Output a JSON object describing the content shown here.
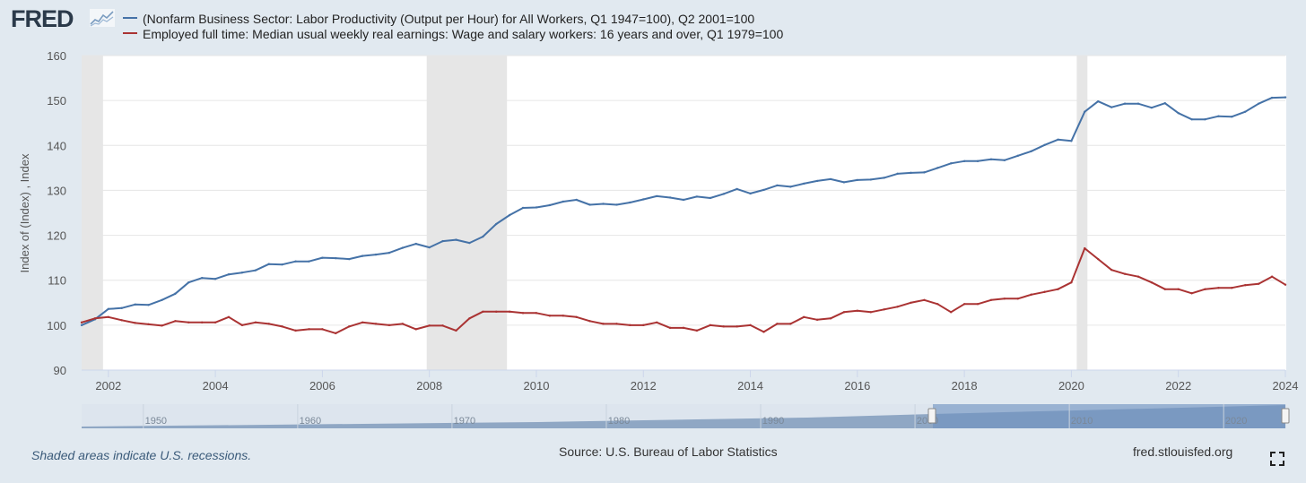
{
  "header": {
    "logo_text": "FRED",
    "logo_icon": "line-chart-icon"
  },
  "legend": [
    {
      "label": "(Nonfarm Business Sector: Labor Productivity (Output per Hour) for All Workers, Q1 1947=100), Q2 2001=100",
      "color": "#4572a7"
    },
    {
      "label": "Employed full time: Median usual weekly real earnings: Wage and salary workers: 16 years and over, Q1 1979=100",
      "color": "#aa3333"
    }
  ],
  "footer": {
    "recession_note": "Shaded areas indicate U.S. recessions.",
    "source": "Source: U.S. Bureau of Labor Statistics",
    "site": "fred.stlouisfed.org"
  },
  "navigator": {
    "ticks": [
      "1950",
      "1960",
      "1970",
      "1980",
      "1990",
      "2000",
      "2010",
      "2020"
    ]
  },
  "chart_data": {
    "type": "line",
    "ylabel": "Index of (Index) , Index",
    "xlabel": "",
    "ylim": [
      90,
      160
    ],
    "xlim": [
      2001.5,
      2024.0
    ],
    "yticks": [
      90,
      100,
      110,
      120,
      130,
      140,
      150,
      160
    ],
    "xticks": [
      "2002",
      "2004",
      "2006",
      "2008",
      "2010",
      "2012",
      "2014",
      "2016",
      "2018",
      "2020",
      "2022",
      "2024"
    ],
    "grid": true,
    "recessions": [
      [
        2001.2,
        2001.9
      ],
      [
        2007.95,
        2009.45
      ],
      [
        2020.1,
        2020.3
      ]
    ],
    "series": [
      {
        "name": "(Nonfarm Business Sector: Labor Productivity (Output per Hour) for All Workers, Q1 1947=100), Q2 2001=100",
        "color": "#4572a7",
        "x": [
          2001.5,
          2001.75,
          2002.0,
          2002.25,
          2002.5,
          2002.75,
          2003.0,
          2003.25,
          2003.5,
          2003.75,
          2004.0,
          2004.25,
          2004.5,
          2004.75,
          2005.0,
          2005.25,
          2005.5,
          2005.75,
          2006.0,
          2006.25,
          2006.5,
          2006.75,
          2007.0,
          2007.25,
          2007.5,
          2007.75,
          2008.0,
          2008.25,
          2008.5,
          2008.75,
          2009.0,
          2009.25,
          2009.5,
          2009.75,
          2010.0,
          2010.25,
          2010.5,
          2010.75,
          2011.0,
          2011.25,
          2011.5,
          2011.75,
          2012.0,
          2012.25,
          2012.5,
          2012.75,
          2013.0,
          2013.25,
          2013.5,
          2013.75,
          2014.0,
          2014.25,
          2014.5,
          2014.75,
          2015.0,
          2015.25,
          2015.5,
          2015.75,
          2016.0,
          2016.25,
          2016.5,
          2016.75,
          2017.0,
          2017.25,
          2017.5,
          2017.75,
          2018.0,
          2018.25,
          2018.5,
          2018.75,
          2019.0,
          2019.25,
          2019.5,
          2019.75,
          2020.0,
          2020.25,
          2020.5,
          2020.75,
          2021.0,
          2021.25,
          2021.5,
          2021.75,
          2022.0,
          2022.25,
          2022.5,
          2022.75,
          2023.0,
          2023.25,
          2023.5,
          2023.75,
          2024.0
        ],
        "values": [
          100.0,
          101.3,
          103.6,
          103.8,
          104.6,
          104.5,
          105.6,
          107.0,
          109.5,
          110.5,
          110.3,
          111.3,
          111.7,
          112.2,
          113.6,
          113.5,
          114.2,
          114.2,
          115.0,
          114.9,
          114.7,
          115.4,
          115.7,
          116.1,
          117.2,
          118.1,
          117.3,
          118.7,
          119.0,
          118.3,
          119.7,
          122.5,
          124.5,
          126.1,
          126.2,
          126.7,
          127.5,
          127.9,
          126.8,
          127.0,
          126.8,
          127.3,
          128.0,
          128.7,
          128.4,
          127.9,
          128.6,
          128.3,
          129.2,
          130.3,
          129.3,
          130.1,
          131.1,
          130.8,
          131.5,
          132.1,
          132.5,
          131.8,
          132.3,
          132.4,
          132.8,
          133.7,
          133.9,
          134.0,
          135.0,
          136.0,
          136.5,
          136.5,
          136.9,
          136.7,
          137.7,
          138.7,
          140.1,
          141.3,
          141.0,
          147.5,
          149.8,
          148.5,
          149.3,
          149.3,
          148.4,
          149.4,
          147.2,
          145.8,
          145.8,
          146.5,
          146.4,
          147.5,
          149.3,
          150.6,
          150.7
        ]
      },
      {
        "name": "Employed full time: Median usual weekly real earnings: Wage and salary workers: 16 years and over, Q1 1979=100",
        "color": "#aa3333",
        "x": [
          2001.5,
          2001.75,
          2002.0,
          2002.25,
          2002.5,
          2002.75,
          2003.0,
          2003.25,
          2003.5,
          2003.75,
          2004.0,
          2004.25,
          2004.5,
          2004.75,
          2005.0,
          2005.25,
          2005.5,
          2005.75,
          2006.0,
          2006.25,
          2006.5,
          2006.75,
          2007.0,
          2007.25,
          2007.5,
          2007.75,
          2008.0,
          2008.25,
          2008.5,
          2008.75,
          2009.0,
          2009.25,
          2009.5,
          2009.75,
          2010.0,
          2010.25,
          2010.5,
          2010.75,
          2011.0,
          2011.25,
          2011.5,
          2011.75,
          2012.0,
          2012.25,
          2012.5,
          2012.75,
          2013.0,
          2013.25,
          2013.5,
          2013.75,
          2014.0,
          2014.25,
          2014.5,
          2014.75,
          2015.0,
          2015.25,
          2015.5,
          2015.75,
          2016.0,
          2016.25,
          2016.5,
          2016.75,
          2017.0,
          2017.25,
          2017.5,
          2017.75,
          2018.0,
          2018.25,
          2018.5,
          2018.75,
          2019.0,
          2019.25,
          2019.5,
          2019.75,
          2020.0,
          2020.25,
          2020.5,
          2020.75,
          2021.0,
          2021.25,
          2021.5,
          2021.75,
          2022.0,
          2022.25,
          2022.5,
          2022.75,
          2023.0,
          2023.25,
          2023.5,
          2023.75,
          2024.0
        ],
        "values": [
          100.6,
          101.5,
          101.8,
          101.1,
          100.5,
          100.2,
          99.9,
          100.9,
          100.6,
          100.6,
          100.6,
          101.8,
          100.0,
          100.6,
          100.3,
          99.7,
          98.8,
          99.1,
          99.1,
          98.2,
          99.7,
          100.6,
          100.3,
          100.0,
          100.3,
          99.1,
          99.9,
          99.9,
          98.8,
          101.5,
          103.0,
          103.0,
          103.0,
          102.7,
          102.7,
          102.1,
          102.1,
          101.8,
          100.9,
          100.3,
          100.3,
          100.0,
          100.0,
          100.6,
          99.4,
          99.4,
          98.8,
          100.0,
          99.7,
          99.7,
          100.0,
          98.5,
          100.3,
          100.3,
          101.8,
          101.2,
          101.5,
          102.9,
          103.2,
          102.9,
          103.5,
          104.1,
          105.0,
          105.6,
          104.7,
          102.9,
          104.7,
          104.7,
          105.6,
          105.9,
          105.9,
          106.8,
          107.4,
          108.0,
          109.5,
          117.1,
          114.7,
          112.3,
          111.4,
          110.8,
          109.5,
          108.0,
          108.0,
          107.1,
          108.0,
          108.3,
          108.3,
          108.9,
          109.2,
          110.8,
          109.0
        ]
      }
    ]
  }
}
